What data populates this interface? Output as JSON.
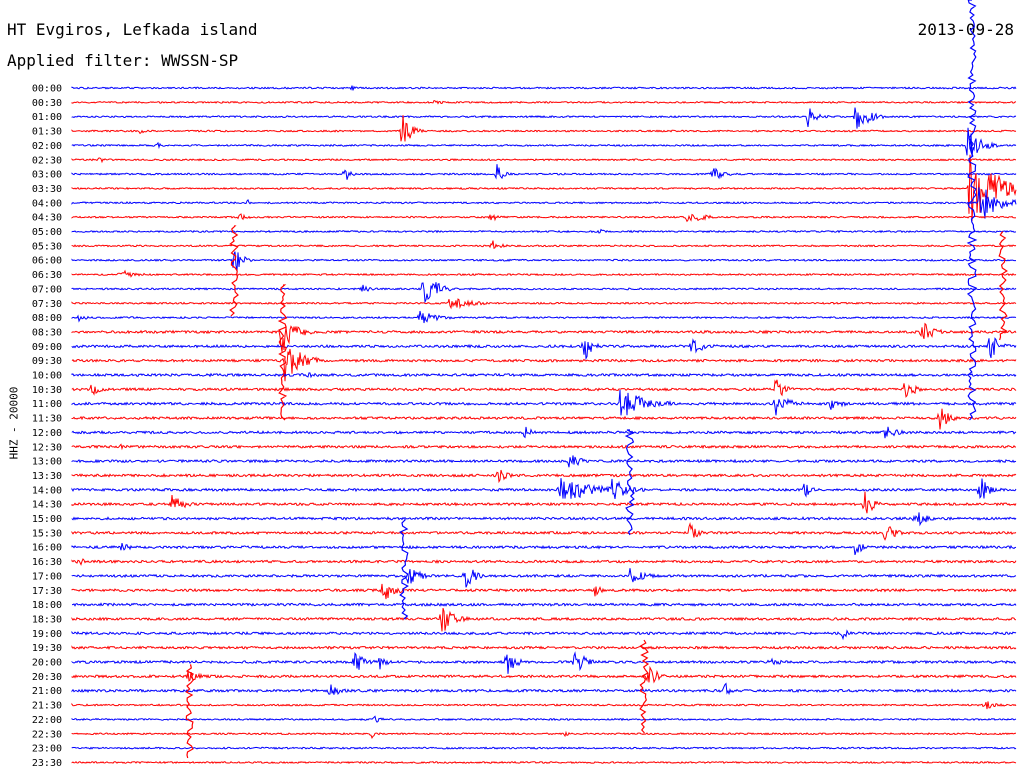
{
  "header": {
    "station": "HT Evgiros, Lefkada island",
    "filter": "Applied filter: WWSSN-SP",
    "date": "2013-09-28"
  },
  "chart_data": {
    "type": "line",
    "title": "HT Evgiros, Lefkada island",
    "subtitle": "Applied filter: WWSSN-SP",
    "ylabel": "HHZ - 20000",
    "xlabel": "",
    "colors": {
      "even_row": "#0000ff",
      "odd_row": "#ff0000"
    },
    "y_tick_labels": [
      "00:00",
      "00:30",
      "01:00",
      "01:30",
      "02:00",
      "02:30",
      "03:00",
      "03:30",
      "04:00",
      "04:30",
      "05:00",
      "05:30",
      "06:00",
      "06:30",
      "07:00",
      "07:30",
      "08:00",
      "08:30",
      "09:00",
      "09:30",
      "10:00",
      "10:30",
      "11:00",
      "11:30",
      "12:00",
      "12:30",
      "13:00",
      "13:30",
      "14:00",
      "14:30",
      "15:00",
      "15:30",
      "16:00",
      "16:30",
      "17:00",
      "17:30",
      "18:00",
      "18:30",
      "19:00",
      "19:30",
      "20:00",
      "20:30",
      "21:00",
      "21:30",
      "22:00",
      "22:30",
      "23:00",
      "23:30"
    ],
    "grid": false,
    "legend": "none"
  }
}
